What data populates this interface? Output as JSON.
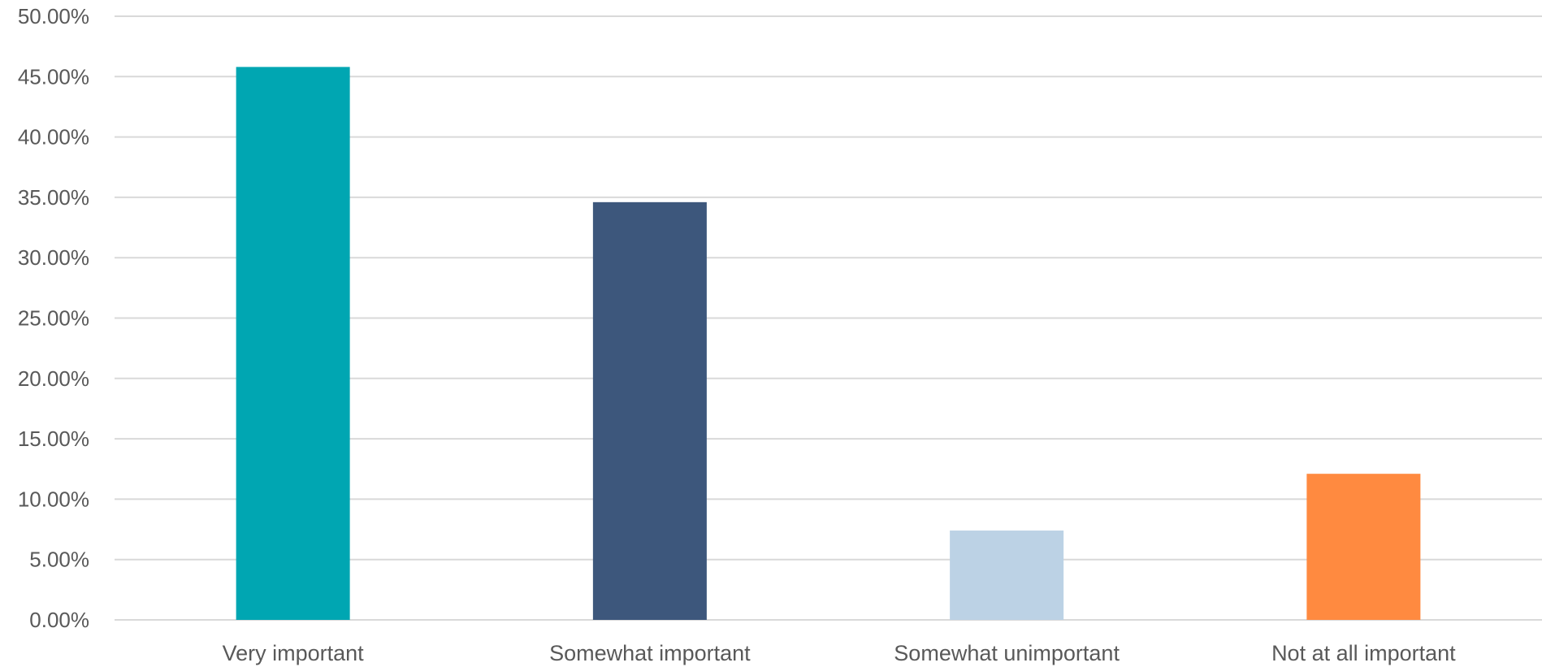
{
  "chart_data": {
    "type": "bar",
    "title": "",
    "xlabel": "",
    "ylabel": "",
    "categories": [
      "Very important",
      "Somewhat important",
      "Somewhat unimportant",
      "Not at all important"
    ],
    "values": [
      45.8,
      34.6,
      7.4,
      12.1
    ],
    "colors": [
      "#00A6B2",
      "#3D577C",
      "#BCD2E5",
      "#FF8A40"
    ],
    "ylim": [
      0,
      50
    ],
    "yticks": [
      0,
      5,
      10,
      15,
      20,
      25,
      30,
      35,
      40,
      45,
      50
    ],
    "ytick_labels": [
      "0.00%",
      "5.00%",
      "10.00%",
      "15.00%",
      "20.00%",
      "25.00%",
      "30.00%",
      "35.00%",
      "40.00%",
      "45.00%",
      "50.00%"
    ],
    "grid": true,
    "legend": "none"
  }
}
